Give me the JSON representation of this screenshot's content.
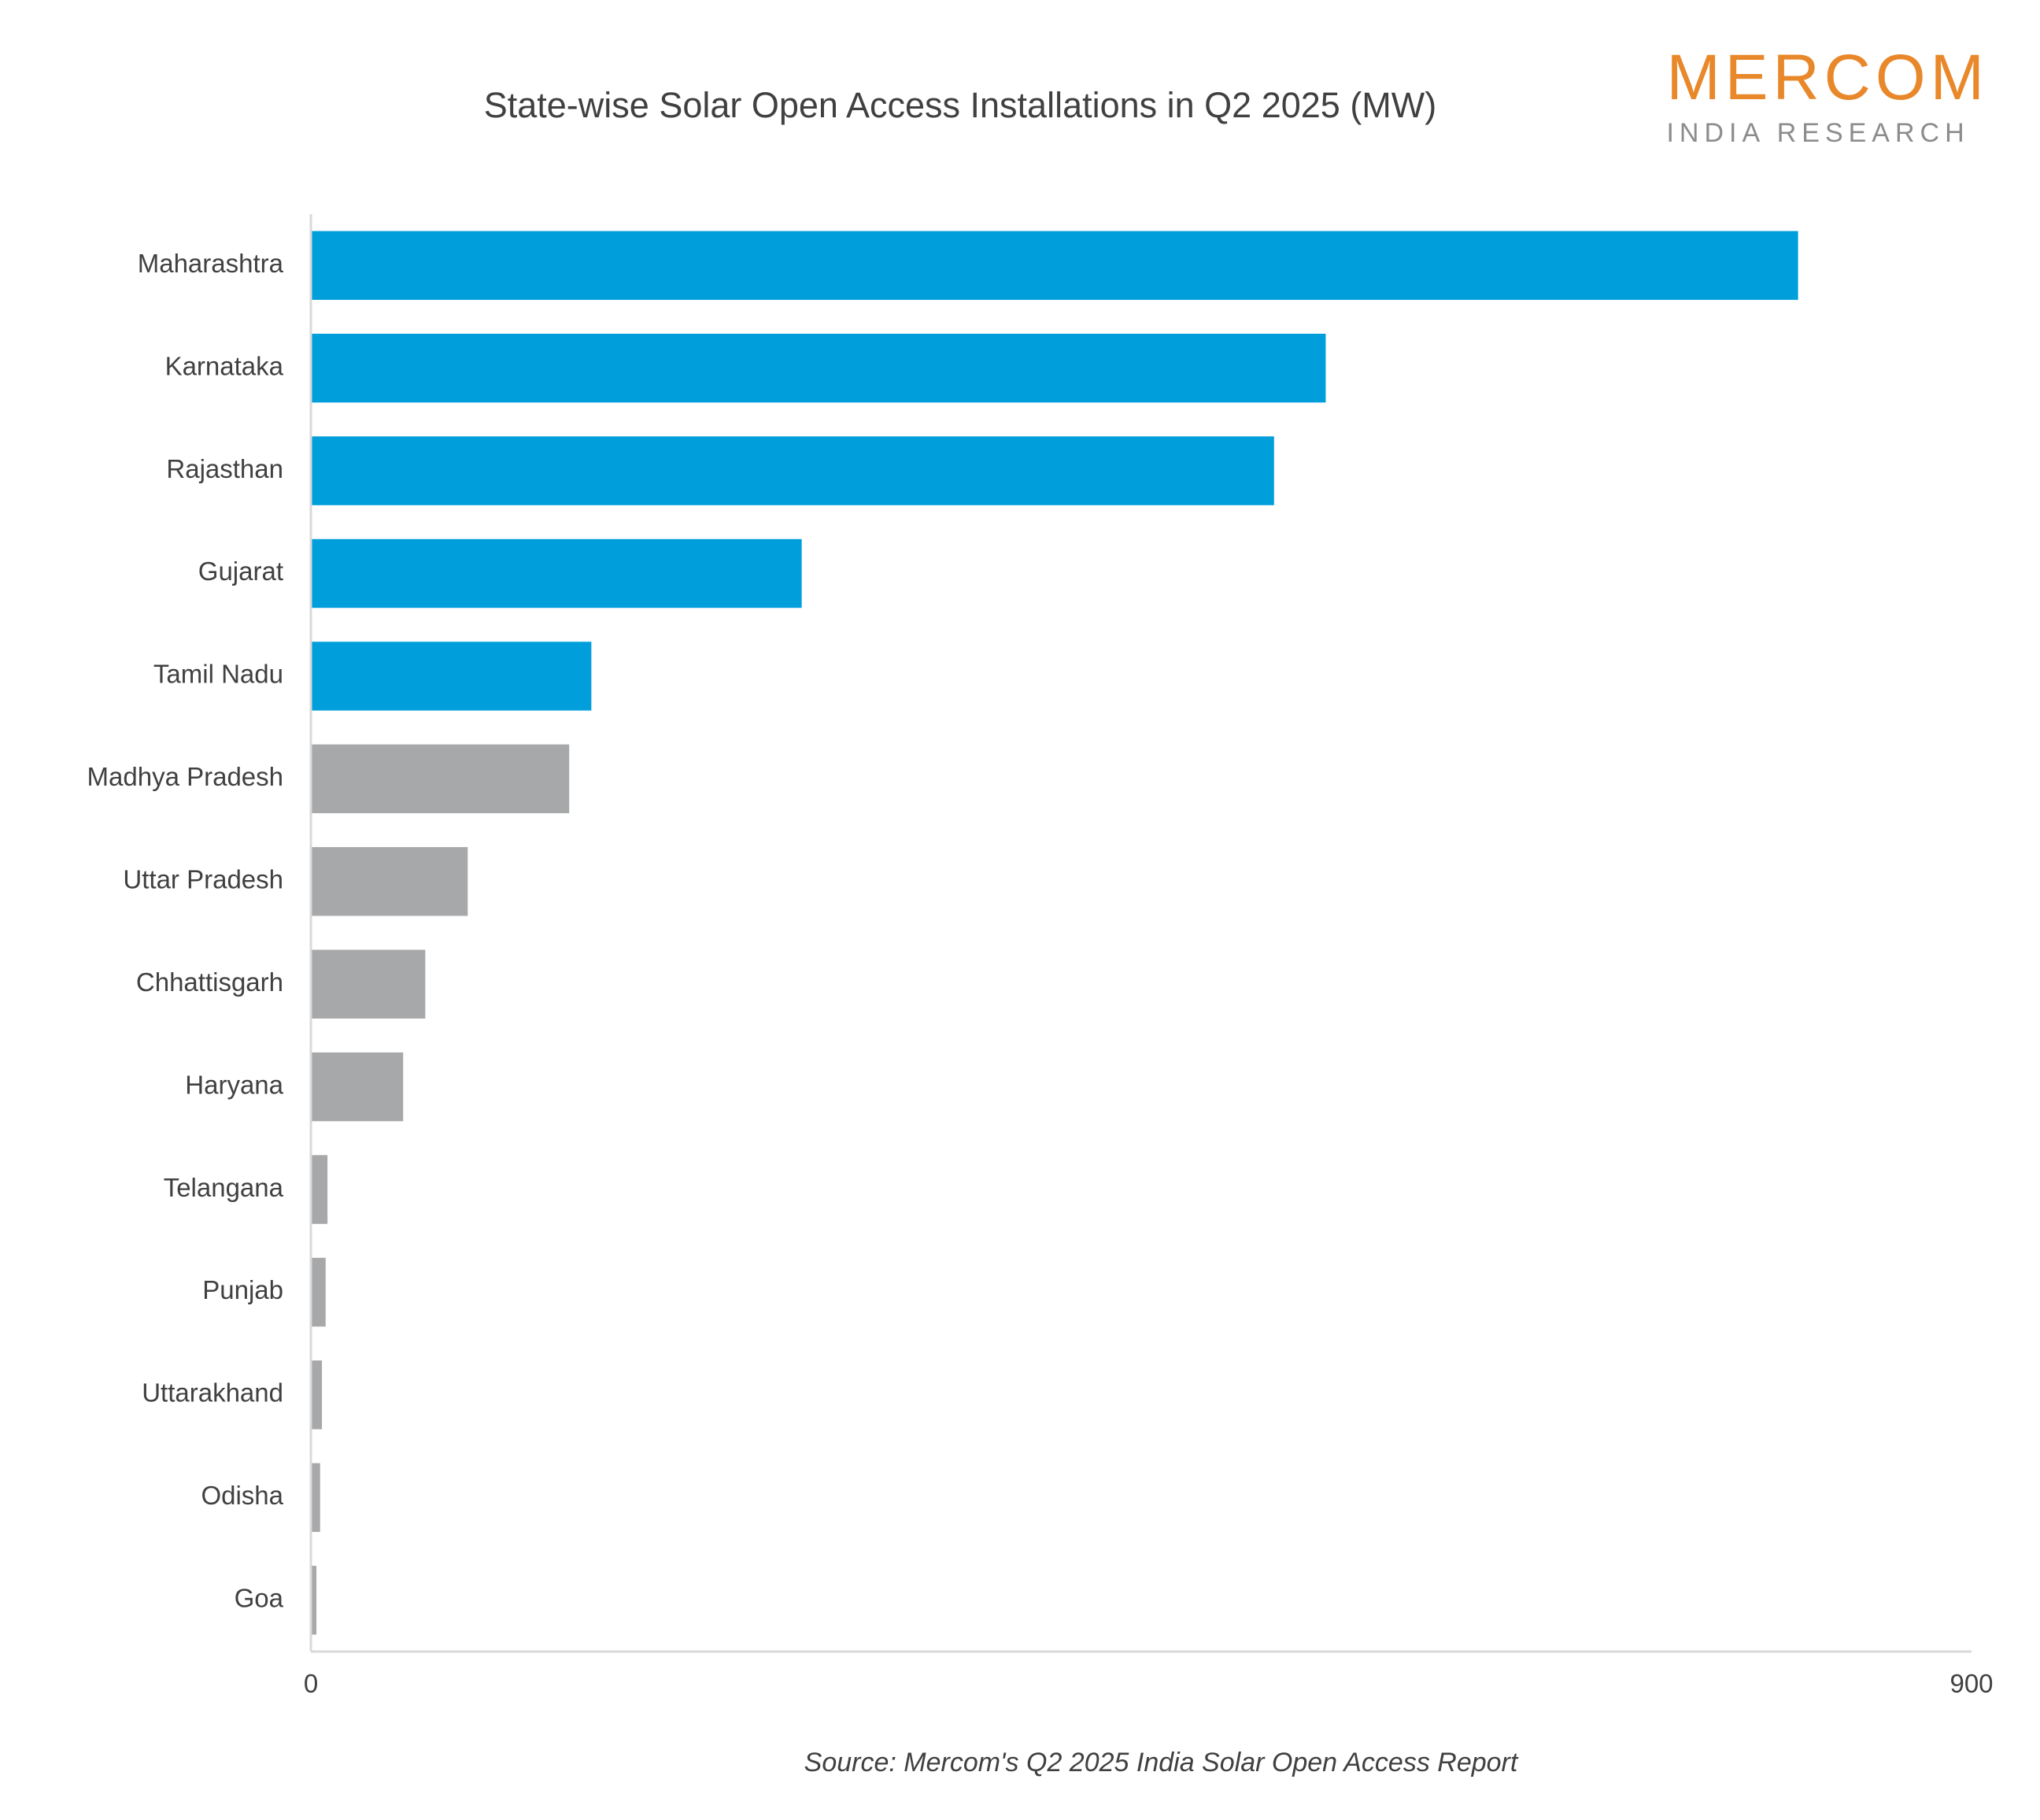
{
  "title": "State-wise Solar Open Access Installations in Q2 2025 (MW)",
  "logo": {
    "name": "MERCOM",
    "subtitle": "INDIA RESEARCH",
    "color": "#E8882A"
  },
  "source": "Source: Mercom's Q2 2025 India Solar Open Access Report",
  "chart_data": {
    "type": "bar",
    "orientation": "horizontal",
    "categories": [
      "Maharashtra",
      "Karnataka",
      "Rajasthan",
      "Gujarat",
      "Tamil Nadu",
      "Madhya Pradesh",
      "Uttar Pradesh",
      "Chhattisgarh",
      "Haryana",
      "Telangana",
      "Punjab",
      "Uttarakhand",
      "Odisha",
      "Goa"
    ],
    "values": [
      806,
      550,
      522,
      266,
      152,
      140,
      85,
      62,
      50,
      9,
      8,
      6,
      5,
      3
    ],
    "colors": [
      "#009FDB",
      "#009FDB",
      "#009FDB",
      "#009FDB",
      "#009FDB",
      "#A7A8AA",
      "#A7A8AA",
      "#A7A8AA",
      "#A7A8AA",
      "#A7A8AA",
      "#A7A8AA",
      "#A7A8AA",
      "#A7A8AA",
      "#A7A8AA"
    ],
    "xlim": [
      0,
      900
    ],
    "xticks": [
      "0",
      "900"
    ],
    "grid": false,
    "legend": "none"
  }
}
